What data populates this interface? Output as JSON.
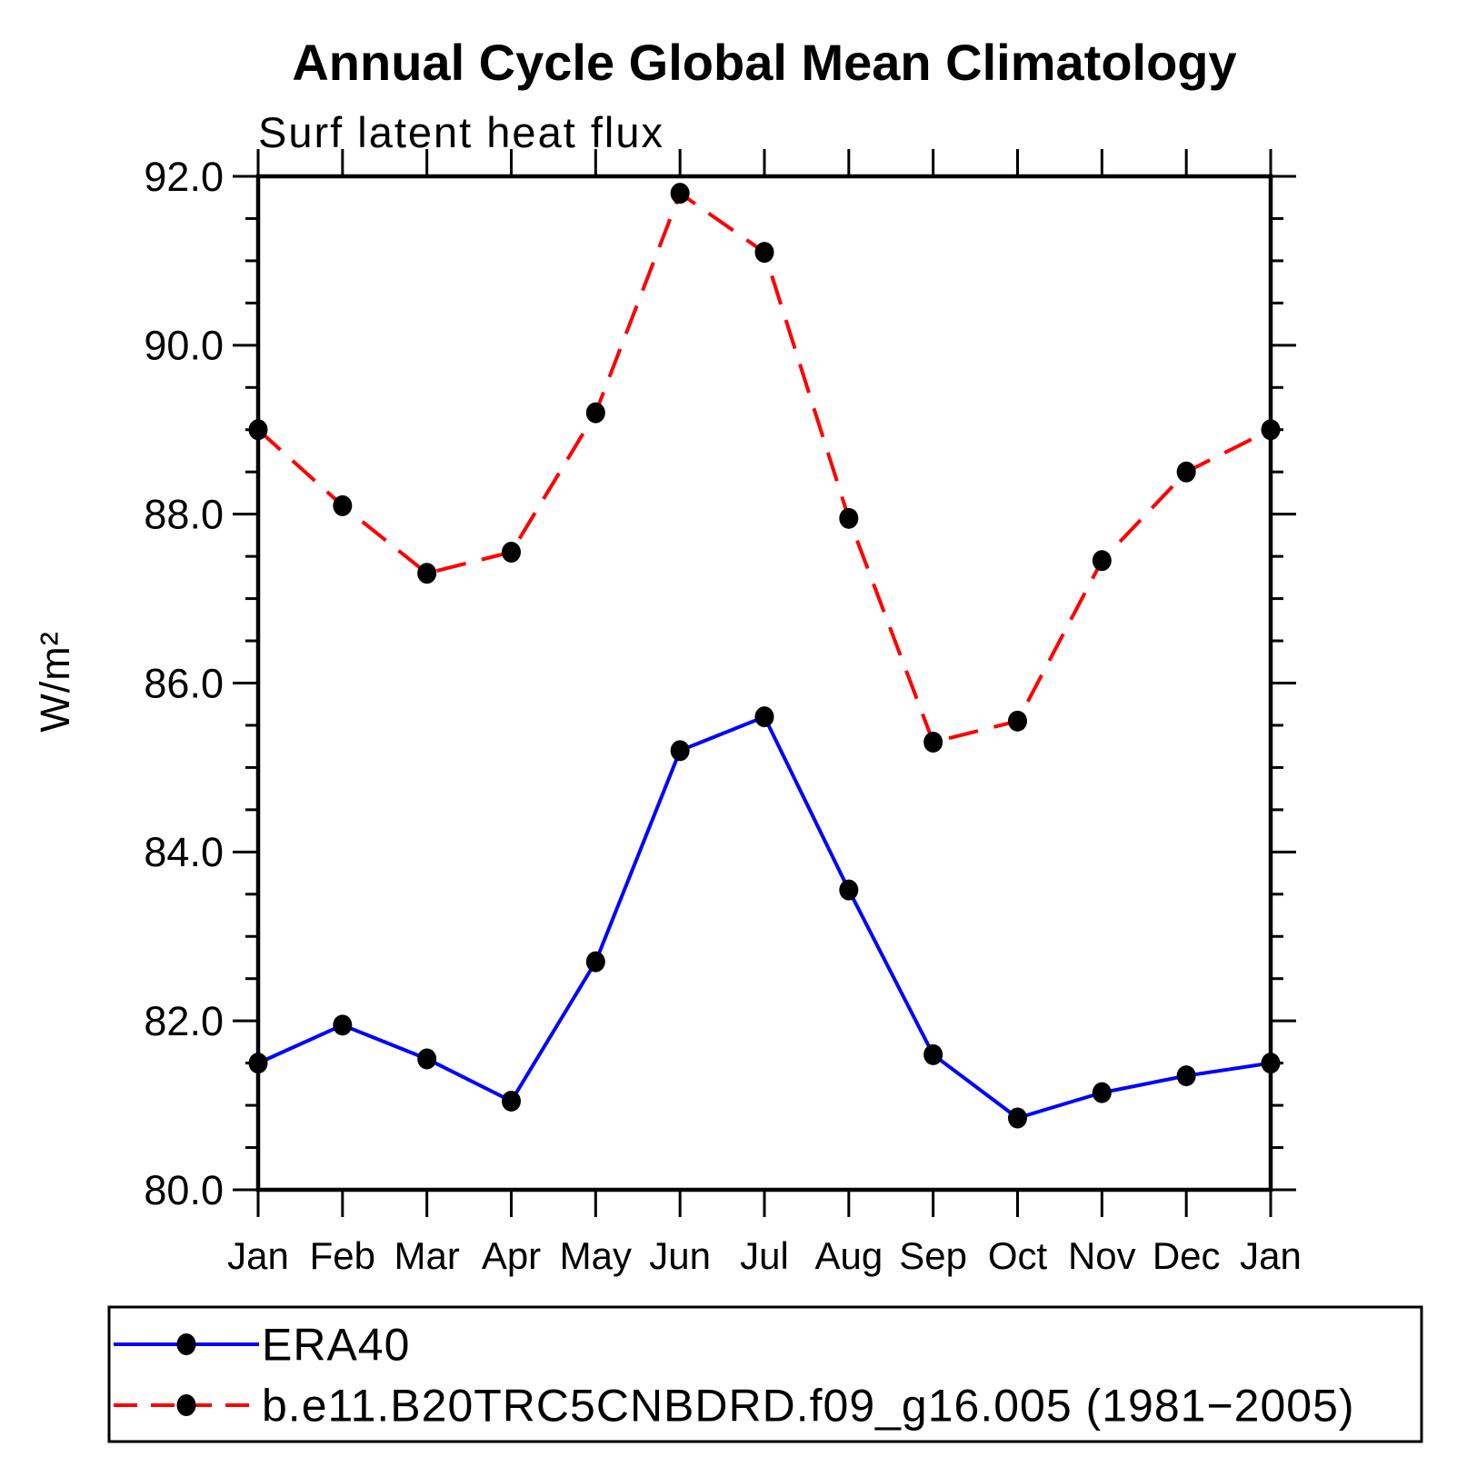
{
  "title": "Annual Cycle Global Mean Climatology",
  "subtitle": "Surf latent heat flux",
  "ylabel": "W/m²",
  "colors": {
    "era40_line": "#0000ff",
    "model_line": "#ff0000",
    "marker": "#000000",
    "axis": "#000000",
    "background": "#ffffff"
  },
  "legend": {
    "items": [
      {
        "label": "ERA40",
        "line_style": "solid",
        "color": "#0000ff",
        "marker": "filled-circle"
      },
      {
        "label": "b.e11.B20TRC5CNBDRD.f09_g16.005 (1981−2005)",
        "line_style": "dashed",
        "color": "#ff0000",
        "marker": "filled-circle"
      }
    ],
    "position": "bottom"
  },
  "chart_data": {
    "type": "line",
    "title": "Annual Cycle Global Mean Climatology",
    "subtitle": "Surf latent heat flux",
    "xlabel": "",
    "ylabel": "W/m²",
    "x_categories": [
      "Jan",
      "Feb",
      "Mar",
      "Apr",
      "May",
      "Jun",
      "Jul",
      "Aug",
      "Sep",
      "Oct",
      "Nov",
      "Dec",
      "Jan"
    ],
    "series": [
      {
        "name": "ERA40",
        "color": "#0000ff",
        "dash": "solid",
        "marker": "filled-circle",
        "marker_color": "#000000",
        "values": [
          81.5,
          81.95,
          81.55,
          81.05,
          82.7,
          85.2,
          85.6,
          83.55,
          81.6,
          80.85,
          81.15,
          81.35,
          81.5
        ]
      },
      {
        "name": "b.e11.B20TRC5CNBDRD.f09_g16.005 (1981−2005)",
        "color": "#ff0000",
        "dash": "dashed",
        "marker": "filled-circle",
        "marker_color": "#000000",
        "values": [
          89.0,
          88.1,
          87.3,
          87.55,
          89.2,
          91.8,
          91.1,
          87.95,
          85.3,
          85.55,
          87.45,
          88.5,
          89.0
        ]
      }
    ],
    "ylim": [
      80.0,
      92.0
    ],
    "yticks": [
      80,
      82,
      84,
      86,
      88,
      90,
      92
    ],
    "ytick_labels": [
      "80.0",
      "82.0",
      "84.0",
      "86.0",
      "88.0",
      "90.0",
      "92.0"
    ],
    "y_minor_step": 0.5,
    "grid": false,
    "tick_direction": "out",
    "legend_position": "bottom"
  }
}
